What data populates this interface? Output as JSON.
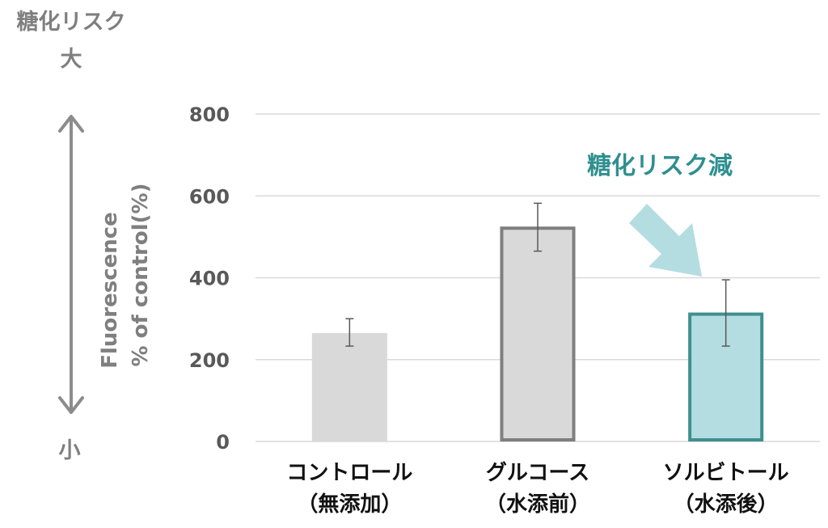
{
  "chart_data": {
    "type": "bar",
    "categories": [
      {
        "line1": "コントロール",
        "line2": "（無添加）"
      },
      {
        "line1": "グルコース",
        "line2": "（水添前）"
      },
      {
        "line1": "ソルビトール",
        "line2": "（水添後）"
      }
    ],
    "series": [
      {
        "values": [
          265,
          525,
          315
        ],
        "error_low": [
          233,
          465,
          233
        ],
        "error_high": [
          300,
          582,
          395
        ]
      }
    ],
    "ylabel_line1": "Fluorescence",
    "ylabel_line2": "% of control(%)",
    "ylim": [
      0,
      800
    ],
    "yticks": [
      0,
      200,
      400,
      600,
      800
    ],
    "grid": true,
    "bar_styles": [
      {
        "fill": "#d9d9d9",
        "stroke": "none"
      },
      {
        "fill": "#d9d9d9",
        "stroke": "#7f7f7f"
      },
      {
        "fill": "#b4dde1",
        "stroke": "#3f8f8f"
      }
    ],
    "annotation": {
      "text": "糖化リスク減",
      "color": "#2f8f8f",
      "arrow_color": "#b4dde1",
      "target_category": 2
    },
    "risk_scale": {
      "top_line1": "糖化リスク",
      "top_line2": "大",
      "bottom": "小",
      "arrow_color": "#8c8c8c"
    }
  }
}
